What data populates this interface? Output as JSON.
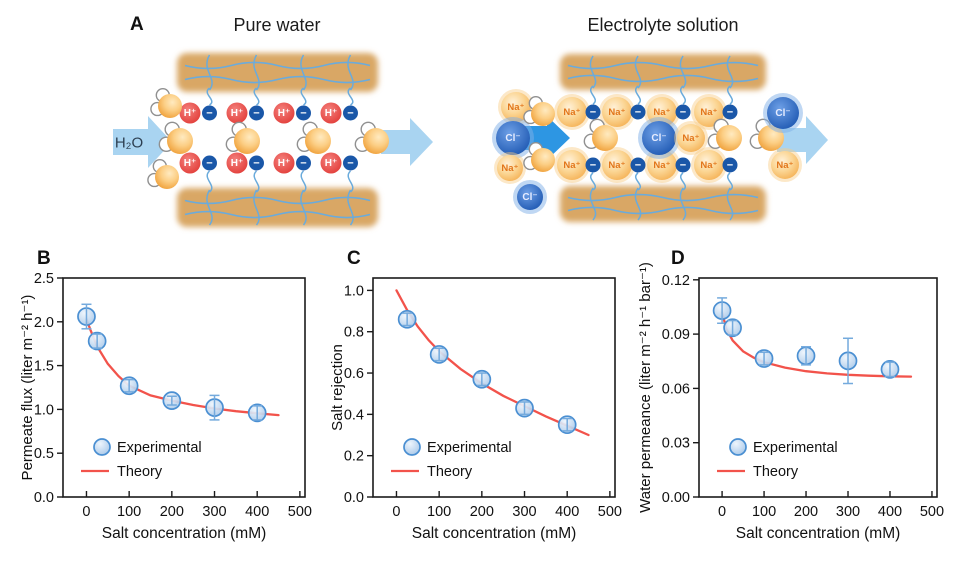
{
  "panel_a": {
    "label": "A",
    "left_title": "Pure water",
    "right_title": "Electrolyte solution",
    "inlet_arrow_label": "H₂O",
    "ion_labels": {
      "proton": "H⁺",
      "fixed_charge": "−",
      "sodium": "Na⁺",
      "chloride": "Cl⁻"
    }
  },
  "colors": {
    "theory_line": "#f2534b",
    "marker_fill": "#c7dcf2",
    "marker_stroke": "#4a8fd2",
    "error_bar": "#74aadd",
    "axis": "#1a1a1a",
    "membrane_tan": "#d9a765",
    "polymer_chain_blue": "#6aabdc",
    "arrow_light_blue": "#a9d4f1",
    "arrow_strong_blue": "#2d96e3",
    "sodium_text": "#e2761b",
    "chloride_text": "#e6ecff",
    "fixed_charge_fill": "#1a57a8"
  },
  "chart_data": [
    {
      "panel": "B",
      "type": "scatter",
      "xlabel": "Salt concentration (mM)",
      "ylabel": "Permeate flux (liter m⁻² h⁻¹)",
      "xlim": [
        -55,
        512
      ],
      "ylim": [
        0,
        2.5
      ],
      "xticks": [
        0,
        100,
        200,
        300,
        400,
        500
      ],
      "yticks": [
        "0.0",
        "0.5",
        "1.0",
        "1.5",
        "2.0",
        "2.5"
      ],
      "grid": false,
      "legend_position": "lower left",
      "legend": {
        "experimental": "Experimental",
        "theory": "Theory"
      },
      "experimental": {
        "x": [
          0,
          25,
          100,
          200,
          300,
          400
        ],
        "y": [
          2.06,
          1.78,
          1.27,
          1.1,
          1.02,
          0.96
        ],
        "yerr": [
          0.14,
          0.08,
          0.07,
          0.05,
          0.14,
          0.08
        ]
      },
      "theory": {
        "x": [
          0,
          10,
          25,
          50,
          75,
          100,
          150,
          200,
          250,
          300,
          350,
          400,
          450
        ],
        "y": [
          2.03,
          1.9,
          1.72,
          1.52,
          1.38,
          1.27,
          1.16,
          1.1,
          1.05,
          1.01,
          0.98,
          0.955,
          0.935
        ]
      }
    },
    {
      "panel": "C",
      "type": "scatter",
      "xlabel": "Salt concentration (mM)",
      "ylabel": "Salt rejection",
      "xlim": [
        -55,
        512
      ],
      "ylim": [
        0,
        1.06
      ],
      "xticks": [
        0,
        100,
        200,
        300,
        400,
        500
      ],
      "yticks": [
        "0.0",
        "0.2",
        "0.4",
        "0.6",
        "0.8",
        "1.0"
      ],
      "grid": false,
      "legend_position": "lower left",
      "legend": {
        "experimental": "Experimental",
        "theory": "Theory"
      },
      "experimental": {
        "x": [
          25,
          100,
          200,
          300,
          400
        ],
        "y": [
          0.86,
          0.69,
          0.57,
          0.43,
          0.35
        ],
        "yerr": [
          0.03,
          0.03,
          0.03,
          0.03,
          0.03
        ]
      },
      "theory": {
        "x": [
          0,
          25,
          50,
          75,
          100,
          150,
          200,
          250,
          300,
          350,
          400,
          450
        ],
        "y": [
          1.0,
          0.905,
          0.825,
          0.76,
          0.705,
          0.62,
          0.55,
          0.49,
          0.44,
          0.39,
          0.345,
          0.3
        ]
      }
    },
    {
      "panel": "D",
      "type": "scatter",
      "xlabel": "Salt concentration (mM)",
      "ylabel": "Water permeance (liter m⁻² h⁻¹ bar⁻¹)",
      "xlim": [
        -55,
        512
      ],
      "ylim": [
        0,
        0.121
      ],
      "xticks": [
        0,
        100,
        200,
        300,
        400,
        500
      ],
      "yticks": [
        "0.00",
        "0.03",
        "0.06",
        "0.09",
        "0.12"
      ],
      "grid": false,
      "legend_position": "lower left",
      "legend": {
        "experimental": "Experimental",
        "theory": "Theory"
      },
      "experimental": {
        "x": [
          0,
          25,
          100,
          200,
          300,
          400
        ],
        "y": [
          0.103,
          0.0935,
          0.0765,
          0.078,
          0.0752,
          0.0705
        ],
        "yerr": [
          0.007,
          0.004,
          0.0035,
          0.005,
          0.0125,
          0.004
        ]
      },
      "theory": {
        "x": [
          0,
          10,
          25,
          50,
          75,
          100,
          150,
          200,
          250,
          300,
          350,
          400,
          450
        ],
        "y": [
          0.102,
          0.093,
          0.0865,
          0.0805,
          0.077,
          0.0745,
          0.0715,
          0.0695,
          0.0683,
          0.0675,
          0.067,
          0.0667,
          0.0665
        ]
      }
    }
  ]
}
